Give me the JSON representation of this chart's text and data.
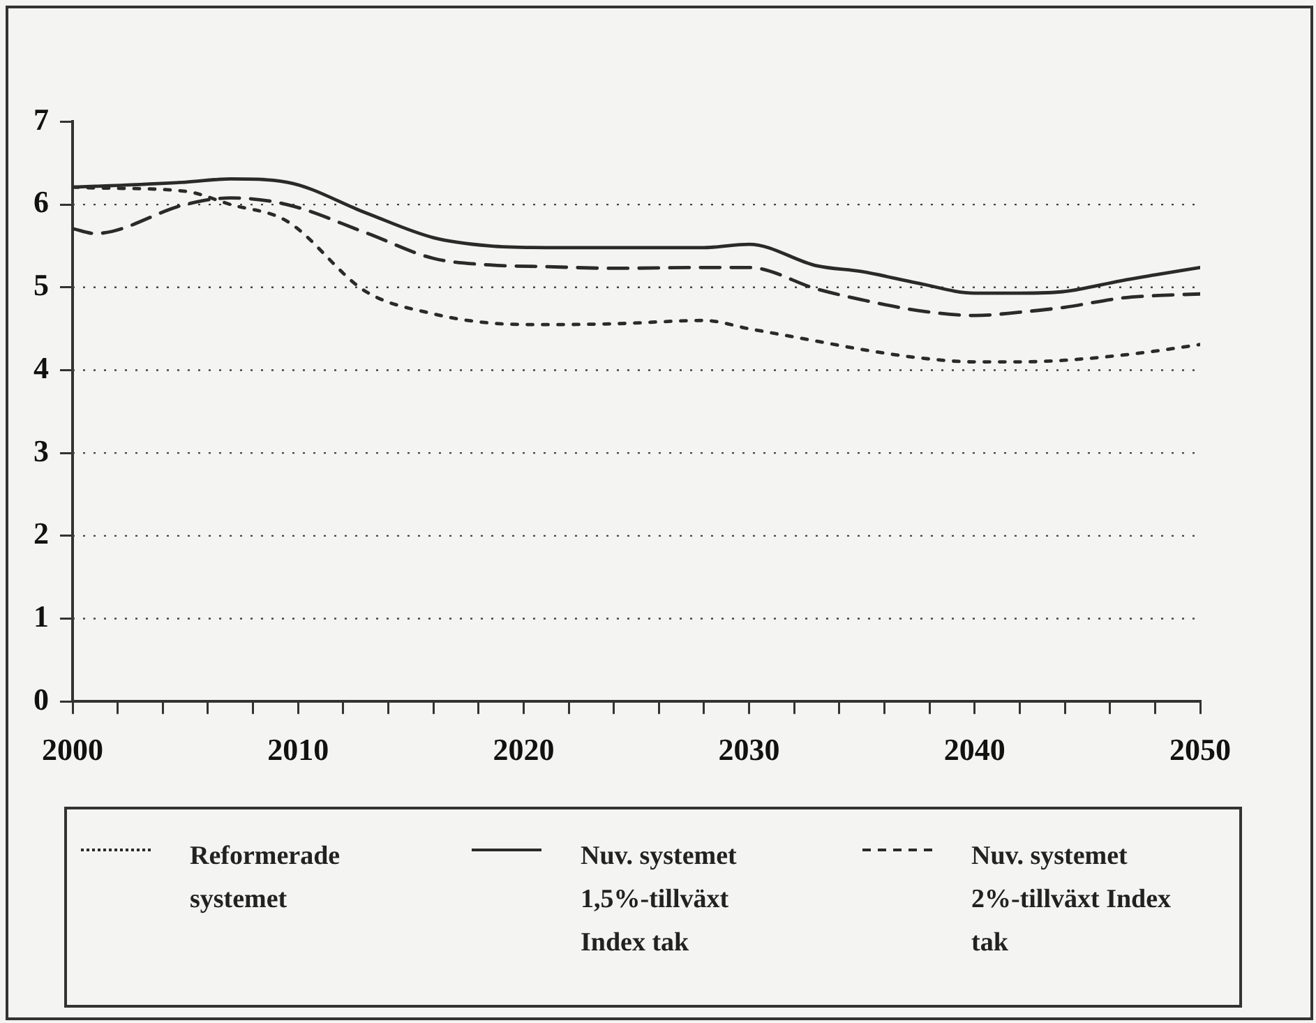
{
  "chart_data": {
    "type": "line",
    "x": [
      2000,
      2001,
      2005,
      2007,
      2009.5,
      2013,
      2016,
      2018.5,
      2021,
      2024,
      2028,
      2030,
      2033,
      2035,
      2037.5,
      2040,
      2042,
      2044,
      2046.5,
      2048,
      2050
    ],
    "series": [
      {
        "name": "Reformerade systemet",
        "color": "#2a2a2a",
        "line_style": "dotted",
        "values": [
          6.21,
          6.2,
          6.16,
          6.0,
          5.8,
          4.95,
          4.68,
          4.57,
          4.55,
          4.56,
          4.6,
          4.5,
          4.35,
          4.25,
          4.15,
          4.1,
          4.1,
          4.12,
          4.18,
          4.23,
          4.31
        ]
      },
      {
        "name": "Nuv. systemet 1,5%-tillväxt Index tak",
        "color": "#2a2a2a",
        "line_style": "solid",
        "values": [
          6.21,
          6.22,
          6.27,
          6.31,
          6.27,
          5.9,
          5.6,
          5.5,
          5.48,
          5.48,
          5.48,
          5.52,
          5.26,
          5.19,
          5.05,
          4.93,
          4.93,
          4.95,
          5.08,
          5.15,
          5.24
        ]
      },
      {
        "name": "Nuv. systemet 2%-tillväxt Index tak",
        "color": "#2a2a2a",
        "line_style": "dashed",
        "values": [
          5.71,
          5.65,
          6.0,
          6.08,
          6.0,
          5.66,
          5.35,
          5.27,
          5.25,
          5.23,
          5.24,
          5.24,
          4.98,
          4.85,
          4.72,
          4.66,
          4.7,
          4.76,
          4.87,
          4.9,
          4.92
        ]
      }
    ],
    "xlim": [
      2000,
      2050
    ],
    "xticks": [
      2000,
      {
        "value": 2002,
        "label": null
      },
      {
        "value": 2004,
        "label": null
      },
      {
        "value": 2006,
        "label": null
      },
      {
        "value": 2008,
        "label": null
      },
      2010,
      {
        "value": 2012,
        "label": null
      },
      {
        "value": 2014,
        "label": null
      },
      {
        "value": 2016,
        "label": null
      },
      {
        "value": 2018,
        "label": null
      },
      2020,
      {
        "value": 2022,
        "label": null
      },
      {
        "value": 2024,
        "label": null
      },
      {
        "value": 2026,
        "label": null
      },
      {
        "value": 2028,
        "label": null
      },
      2030,
      {
        "value": 2032,
        "label": null
      },
      {
        "value": 2034,
        "label": null
      },
      {
        "value": 2036,
        "label": null
      },
      {
        "value": 2038,
        "label": null
      },
      2040,
      {
        "value": 2042,
        "label": null
      },
      {
        "value": 2044,
        "label": null
      },
      {
        "value": 2046,
        "label": null
      },
      {
        "value": 2048,
        "label": null
      },
      2050
    ],
    "ylim": [
      0,
      7
    ],
    "yticks": [
      0,
      1,
      2,
      3,
      4,
      5,
      6,
      7
    ],
    "grid": "y",
    "legend": "bottom",
    "marker": "none"
  }
}
